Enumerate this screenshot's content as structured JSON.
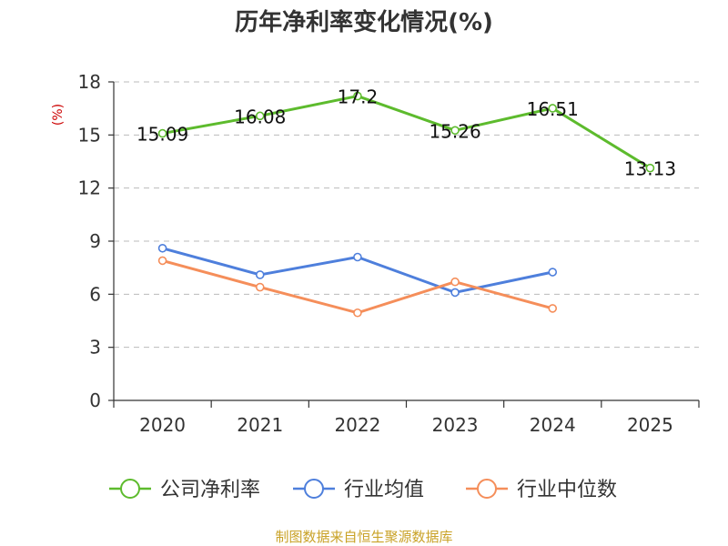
{
  "chart_data": {
    "type": "line",
    "title": "历年净利率变化情况(%)",
    "ylabel": "(%)",
    "xlabel": "",
    "categories": [
      "2020",
      "2021",
      "2022",
      "2023",
      "2024",
      "2025"
    ],
    "ylim": [
      0,
      18
    ],
    "yticks": [
      0,
      3,
      6,
      9,
      12,
      15,
      18
    ],
    "grid": true,
    "legend_position": "bottom",
    "series": [
      {
        "name": "公司净利率",
        "color": "#5dbb2d",
        "values": [
          15.09,
          16.08,
          17.2,
          15.26,
          16.51,
          13.13
        ],
        "labels": [
          "15.09",
          "16.08",
          "17.2",
          "15.26",
          "16.51",
          "13.13"
        ],
        "show_labels": true
      },
      {
        "name": "行业均值",
        "color": "#4e7fdc",
        "values": [
          8.6,
          7.1,
          8.1,
          6.1,
          7.25,
          null
        ],
        "show_labels": false
      },
      {
        "name": "行业中位数",
        "color": "#f58e5a",
        "values": [
          7.9,
          6.4,
          4.95,
          6.7,
          5.2,
          null
        ],
        "show_labels": false
      }
    ]
  },
  "source": "制图数据来自恒生聚源数据库"
}
